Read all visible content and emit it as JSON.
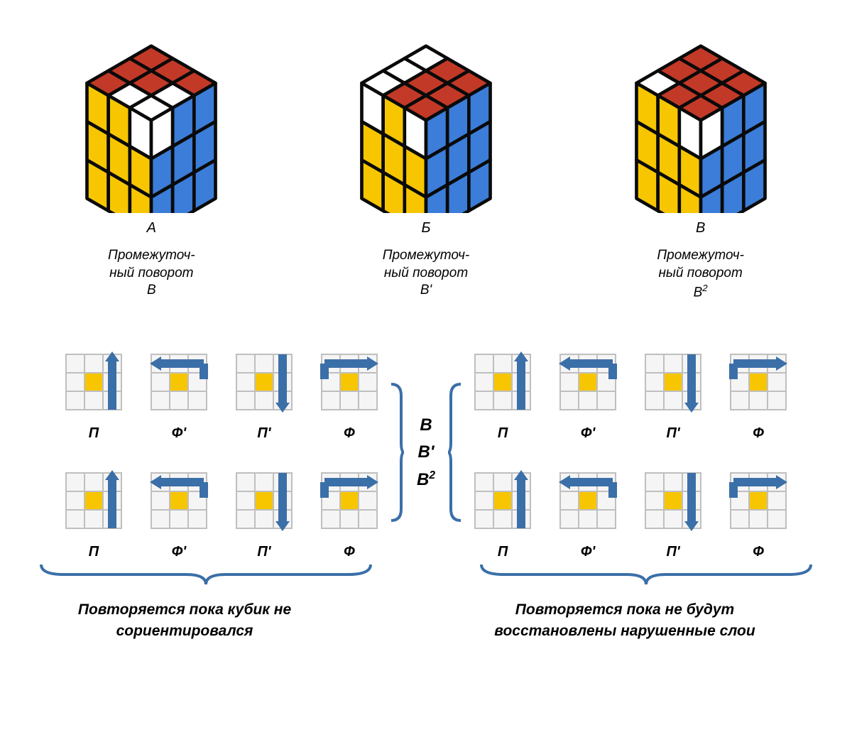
{
  "colors": {
    "red": "#c33927",
    "yellow": "#f7c600",
    "blue": "#3b7dd8",
    "white": "#ffffff",
    "black": "#0a0a0a",
    "grid_border": "#bfbfbf",
    "grid_fill": "#f5f5f5",
    "arrow": "#3b6fa8",
    "brace": "#3b6fa8"
  },
  "cubes": [
    {
      "label": "А",
      "caption_l1": "Промежуточ-",
      "caption_l2": "ный поворот",
      "caption_l3": "В",
      "top": [
        "red",
        "red",
        "red",
        "red",
        "red",
        "white",
        "red",
        "white",
        "white"
      ],
      "front": [
        "yellow",
        "yellow",
        "white",
        "yellow",
        "yellow",
        "yellow",
        "yellow",
        "yellow",
        "yellow"
      ],
      "right": [
        "white",
        "blue",
        "blue",
        "blue",
        "blue",
        "blue",
        "blue",
        "blue",
        "blue"
      ]
    },
    {
      "label": "Б",
      "caption_l1": "Промежуточ-",
      "caption_l2": "ный поворот",
      "caption_l3": "В'",
      "top": [
        "white",
        "red",
        "red",
        "white",
        "red",
        "red",
        "white",
        "red",
        "red"
      ],
      "front": [
        "white",
        "yellow",
        "white",
        "yellow",
        "yellow",
        "yellow",
        "yellow",
        "yellow",
        "yellow"
      ],
      "right": [
        "blue",
        "blue",
        "blue",
        "blue",
        "blue",
        "blue",
        "blue",
        "blue",
        "blue"
      ]
    },
    {
      "label": "В",
      "caption_l1": "Промежуточ-",
      "caption_l2": "ный поворот",
      "caption_l3_html": "В<sup>2</sup>",
      "top": [
        "red",
        "red",
        "red",
        "red",
        "red",
        "red",
        "white",
        "red",
        "red"
      ],
      "front": [
        "yellow",
        "yellow",
        "white",
        "yellow",
        "yellow",
        "yellow",
        "yellow",
        "yellow",
        "yellow"
      ],
      "right": [
        "white",
        "blue",
        "blue",
        "blue",
        "blue",
        "blue",
        "blue",
        "blue",
        "blue"
      ]
    }
  ],
  "move_sequence": [
    "П",
    "Ф'",
    "П'",
    "Ф"
  ],
  "move_arrows": [
    "R_up",
    "T_ccw",
    "R_down",
    "T_cw"
  ],
  "center_lines": [
    "В",
    "В'",
    "В<sup>2</sup>"
  ],
  "footer_left": "Повторяется пока кубик не сориентировался",
  "footer_right": "Повторяется пока не будут восстановлены нарушенные слои"
}
